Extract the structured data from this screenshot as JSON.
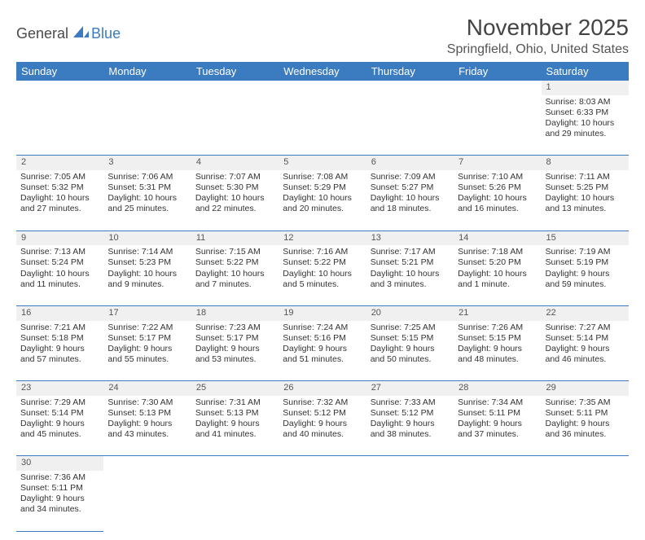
{
  "brand": {
    "part1": "General",
    "part2": "Blue"
  },
  "title": "November 2025",
  "location": "Springfield, Ohio, United States",
  "logo_colors": {
    "text1": "#4a4a4a",
    "text2": "#3b7bbf",
    "sail": "#3b7bbf"
  },
  "header_bg": "#3b7bbf",
  "header_fg": "#ffffff",
  "daynum_bg": "#f0f0f0",
  "cell_border": "#3b7bbf",
  "day_names": [
    "Sunday",
    "Monday",
    "Tuesday",
    "Wednesday",
    "Thursday",
    "Friday",
    "Saturday"
  ],
  "weeks": [
    [
      null,
      null,
      null,
      null,
      null,
      null,
      {
        "n": "1",
        "sr": "Sunrise: 8:03 AM",
        "ss": "Sunset: 6:33 PM",
        "dl": "Daylight: 10 hours and 29 minutes."
      }
    ],
    [
      {
        "n": "2",
        "sr": "Sunrise: 7:05 AM",
        "ss": "Sunset: 5:32 PM",
        "dl": "Daylight: 10 hours and 27 minutes."
      },
      {
        "n": "3",
        "sr": "Sunrise: 7:06 AM",
        "ss": "Sunset: 5:31 PM",
        "dl": "Daylight: 10 hours and 25 minutes."
      },
      {
        "n": "4",
        "sr": "Sunrise: 7:07 AM",
        "ss": "Sunset: 5:30 PM",
        "dl": "Daylight: 10 hours and 22 minutes."
      },
      {
        "n": "5",
        "sr": "Sunrise: 7:08 AM",
        "ss": "Sunset: 5:29 PM",
        "dl": "Daylight: 10 hours and 20 minutes."
      },
      {
        "n": "6",
        "sr": "Sunrise: 7:09 AM",
        "ss": "Sunset: 5:27 PM",
        "dl": "Daylight: 10 hours and 18 minutes."
      },
      {
        "n": "7",
        "sr": "Sunrise: 7:10 AM",
        "ss": "Sunset: 5:26 PM",
        "dl": "Daylight: 10 hours and 16 minutes."
      },
      {
        "n": "8",
        "sr": "Sunrise: 7:11 AM",
        "ss": "Sunset: 5:25 PM",
        "dl": "Daylight: 10 hours and 13 minutes."
      }
    ],
    [
      {
        "n": "9",
        "sr": "Sunrise: 7:13 AM",
        "ss": "Sunset: 5:24 PM",
        "dl": "Daylight: 10 hours and 11 minutes."
      },
      {
        "n": "10",
        "sr": "Sunrise: 7:14 AM",
        "ss": "Sunset: 5:23 PM",
        "dl": "Daylight: 10 hours and 9 minutes."
      },
      {
        "n": "11",
        "sr": "Sunrise: 7:15 AM",
        "ss": "Sunset: 5:22 PM",
        "dl": "Daylight: 10 hours and 7 minutes."
      },
      {
        "n": "12",
        "sr": "Sunrise: 7:16 AM",
        "ss": "Sunset: 5:22 PM",
        "dl": "Daylight: 10 hours and 5 minutes."
      },
      {
        "n": "13",
        "sr": "Sunrise: 7:17 AM",
        "ss": "Sunset: 5:21 PM",
        "dl": "Daylight: 10 hours and 3 minutes."
      },
      {
        "n": "14",
        "sr": "Sunrise: 7:18 AM",
        "ss": "Sunset: 5:20 PM",
        "dl": "Daylight: 10 hours and 1 minute."
      },
      {
        "n": "15",
        "sr": "Sunrise: 7:19 AM",
        "ss": "Sunset: 5:19 PM",
        "dl": "Daylight: 9 hours and 59 minutes."
      }
    ],
    [
      {
        "n": "16",
        "sr": "Sunrise: 7:21 AM",
        "ss": "Sunset: 5:18 PM",
        "dl": "Daylight: 9 hours and 57 minutes."
      },
      {
        "n": "17",
        "sr": "Sunrise: 7:22 AM",
        "ss": "Sunset: 5:17 PM",
        "dl": "Daylight: 9 hours and 55 minutes."
      },
      {
        "n": "18",
        "sr": "Sunrise: 7:23 AM",
        "ss": "Sunset: 5:17 PM",
        "dl": "Daylight: 9 hours and 53 minutes."
      },
      {
        "n": "19",
        "sr": "Sunrise: 7:24 AM",
        "ss": "Sunset: 5:16 PM",
        "dl": "Daylight: 9 hours and 51 minutes."
      },
      {
        "n": "20",
        "sr": "Sunrise: 7:25 AM",
        "ss": "Sunset: 5:15 PM",
        "dl": "Daylight: 9 hours and 50 minutes."
      },
      {
        "n": "21",
        "sr": "Sunrise: 7:26 AM",
        "ss": "Sunset: 5:15 PM",
        "dl": "Daylight: 9 hours and 48 minutes."
      },
      {
        "n": "22",
        "sr": "Sunrise: 7:27 AM",
        "ss": "Sunset: 5:14 PM",
        "dl": "Daylight: 9 hours and 46 minutes."
      }
    ],
    [
      {
        "n": "23",
        "sr": "Sunrise: 7:29 AM",
        "ss": "Sunset: 5:14 PM",
        "dl": "Daylight: 9 hours and 45 minutes."
      },
      {
        "n": "24",
        "sr": "Sunrise: 7:30 AM",
        "ss": "Sunset: 5:13 PM",
        "dl": "Daylight: 9 hours and 43 minutes."
      },
      {
        "n": "25",
        "sr": "Sunrise: 7:31 AM",
        "ss": "Sunset: 5:13 PM",
        "dl": "Daylight: 9 hours and 41 minutes."
      },
      {
        "n": "26",
        "sr": "Sunrise: 7:32 AM",
        "ss": "Sunset: 5:12 PM",
        "dl": "Daylight: 9 hours and 40 minutes."
      },
      {
        "n": "27",
        "sr": "Sunrise: 7:33 AM",
        "ss": "Sunset: 5:12 PM",
        "dl": "Daylight: 9 hours and 38 minutes."
      },
      {
        "n": "28",
        "sr": "Sunrise: 7:34 AM",
        "ss": "Sunset: 5:11 PM",
        "dl": "Daylight: 9 hours and 37 minutes."
      },
      {
        "n": "29",
        "sr": "Sunrise: 7:35 AM",
        "ss": "Sunset: 5:11 PM",
        "dl": "Daylight: 9 hours and 36 minutes."
      }
    ],
    [
      {
        "n": "30",
        "sr": "Sunrise: 7:36 AM",
        "ss": "Sunset: 5:11 PM",
        "dl": "Daylight: 9 hours and 34 minutes."
      },
      null,
      null,
      null,
      null,
      null,
      null
    ]
  ]
}
